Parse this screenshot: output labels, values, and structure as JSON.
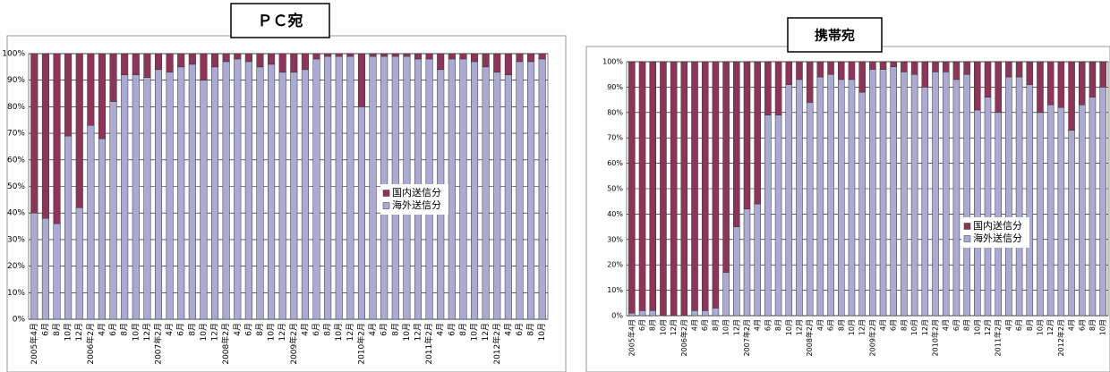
{
  "chart_data": [
    {
      "type": "bar",
      "stacked": true,
      "title": "ＰＣ宛",
      "categories": [
        "2005年4月",
        "6月",
        "8月",
        "10月",
        "12月",
        "2006年2月",
        "4月",
        "6月",
        "8月",
        "10月",
        "12月",
        "2007年2月",
        "4月",
        "6月",
        "8月",
        "10月",
        "12月",
        "2008年2月",
        "4月",
        "6月",
        "8月",
        "10月",
        "12月",
        "2009年2月",
        "4月",
        "6月",
        "8月",
        "10月",
        "12月",
        "2010年2月",
        "4月",
        "6月",
        "8月",
        "10月",
        "12月",
        "2011年2月",
        "4月",
        "6月",
        "8月",
        "10月",
        "12月",
        "2012年2月",
        "4月",
        "6月",
        "8月",
        "10月"
      ],
      "series": [
        {
          "name": "海外送信分",
          "color": "#aaaad4",
          "values": [
            40,
            38,
            36,
            69,
            42,
            73,
            68,
            82,
            92,
            92,
            91,
            94,
            93,
            95,
            96,
            90,
            95,
            97,
            98,
            97,
            95,
            96,
            93,
            93,
            94,
            98,
            99,
            99,
            99,
            80,
            99,
            99,
            99,
            99,
            98,
            98,
            94,
            98,
            98,
            97,
            95,
            93,
            92,
            97,
            97,
            98
          ]
        },
        {
          "name": "国内送信分",
          "color": "#8e3458",
          "values": [
            60,
            62,
            64,
            31,
            58,
            27,
            32,
            18,
            8,
            8,
            9,
            6,
            7,
            5,
            4,
            10,
            5,
            3,
            2,
            3,
            5,
            4,
            7,
            7,
            6,
            2,
            1,
            1,
            1,
            20,
            1,
            1,
            1,
            1,
            2,
            2,
            6,
            2,
            2,
            3,
            5,
            7,
            8,
            3,
            3,
            2
          ]
        }
      ],
      "ylim": [
        0,
        100
      ],
      "yticks": [
        {
          "value": 0,
          "label": "0%"
        },
        {
          "value": 10,
          "label": "10%"
        },
        {
          "value": 20,
          "label": "20%"
        },
        {
          "value": 30,
          "label": "30%"
        },
        {
          "value": 40,
          "label": "40%"
        },
        {
          "value": 50,
          "label": "50%"
        },
        {
          "value": 60,
          "label": "60%"
        },
        {
          "value": 70,
          "label": "70%"
        },
        {
          "value": 80,
          "label": "80%"
        },
        {
          "value": 90,
          "label": "90%"
        },
        {
          "value": 100,
          "label": "100%"
        }
      ],
      "grid": true,
      "legend": "center"
    },
    {
      "type": "bar",
      "stacked": true,
      "title": "携帯宛",
      "categories": [
        "2005年4月",
        "6月",
        "8月",
        "10月",
        "12月",
        "2006年2月",
        "4月",
        "6月",
        "8月",
        "10月",
        "12月",
        "2007年2月",
        "4月",
        "6月",
        "8月",
        "10月",
        "12月",
        "2008年2月",
        "4月",
        "6月",
        "8月",
        "10月",
        "12月",
        "2009年2月",
        "4月",
        "6月",
        "8月",
        "10月",
        "12月",
        "2010年2月",
        "4月",
        "6月",
        "8月",
        "10月",
        "12月",
        "2011年2月",
        "4月",
        "6月",
        "8月",
        "10月",
        "12月",
        "2012年2月",
        "4月",
        "6月",
        "8月",
        "10月"
      ],
      "series": [
        {
          "name": "海外送信分",
          "color": "#aaaad4",
          "values": [
            1,
            2,
            2,
            0,
            0,
            0,
            2,
            2,
            3,
            17,
            35,
            42,
            44,
            79,
            79,
            91,
            93,
            84,
            94,
            95,
            93,
            93,
            88,
            97,
            97,
            98,
            96,
            95,
            90,
            96,
            96,
            93,
            95,
            81,
            86,
            80,
            94,
            94,
            91,
            80,
            83,
            82,
            73,
            83,
            86,
            90
          ]
        },
        {
          "name": "国内送信分",
          "color": "#8e3458",
          "values": [
            99,
            98,
            98,
            100,
            100,
            100,
            98,
            98,
            97,
            83,
            65,
            58,
            56,
            21,
            21,
            9,
            7,
            16,
            6,
            5,
            7,
            7,
            12,
            3,
            3,
            2,
            4,
            5,
            10,
            4,
            4,
            7,
            5,
            19,
            14,
            20,
            6,
            6,
            9,
            20,
            17,
            18,
            27,
            17,
            14,
            10
          ]
        }
      ],
      "ylim": [
        0,
        100
      ],
      "yticks": [
        {
          "value": 0,
          "label": "0%"
        },
        {
          "value": 10,
          "label": "10%"
        },
        {
          "value": 20,
          "label": "20%"
        },
        {
          "value": 30,
          "label": "30%"
        },
        {
          "value": 40,
          "label": "40%"
        },
        {
          "value": 50,
          "label": "50%"
        },
        {
          "value": 60,
          "label": "60%"
        },
        {
          "value": 70,
          "label": "70%"
        },
        {
          "value": 80,
          "label": "80%"
        },
        {
          "value": 90,
          "label": "90%"
        },
        {
          "value": 100,
          "label": "100%"
        }
      ],
      "grid": true,
      "legend": "center"
    }
  ]
}
